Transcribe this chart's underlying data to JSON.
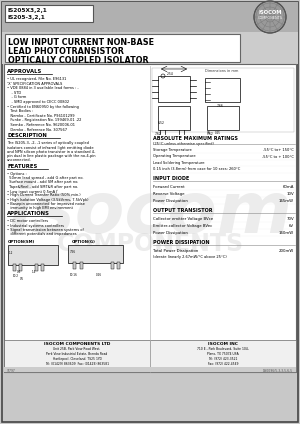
{
  "bg_color": "#c8c8c8",
  "white": "#ffffff",
  "black": "#000000",
  "part1": "IS205X3,2,1",
  "part2": "IS205-3,2,1",
  "title_line1": "LOW INPUT CURRENT NON-BASE",
  "title_line2": "LEAD PHOTOTRANSISTOR",
  "title_line3": "OPTICALLY COUPLED ISOLATOR",
  "approvals_text": [
    "• UL recognized, File No. E96131",
    "‘X’ SPECIFICATION APPROVALS",
    "• VDE 0884 in 3 available lead forms : -",
    "    - STD",
    "    - G form",
    "    - SMD approved to CECC 00802",
    "• Certified to EN60950 by the following",
    "   Test Bodies :",
    "   Nemko - Certificate No. P96101299",
    "   Funke - Registration No. 199469-01 .22",
    "   Semko - Reference No. 9620006-01",
    "   Demko - Reference No. 307567"
  ],
  "desc_text": [
    "The IS205-3, -2, -1 series of optically coupled",
    "isolators consist of infrared light emitting diode",
    "and NPN silicon photo transistor in a standard 4-",
    "pin dual in line plastic package with the no-4-pin",
    "unconnected."
  ],
  "features_text": [
    "• Options :",
    "  50mm lead spread - add G after part no.",
    "  Surface mount - add SM after part no.",
    "  Tape&Reel - add SMT&R after part no.",
    "• Low input current 0.5mA Iⁱ",
    "• High Current Transfer Ratio (50% min.)",
    "• High Isolation Voltage (3.5kVrms, 7.5kVpk)",
    "• Basepin unconnected for improved noise",
    "   immunity in high EMI environment"
  ],
  "apps_text": [
    "• DC motor controllers",
    "• Industrial systems controllers",
    "• Signal transmission between systems of",
    "   different potentials and impedances"
  ],
  "abs_items": [
    [
      "Storage Temperature",
      "-55°C to+ 150°C"
    ],
    [
      "Operating Temperature",
      "-55°C to + 100°C"
    ],
    [
      "Lead Soldering Temperature",
      ""
    ],
    [
      "0.15 inch (3.8mm) from case for 10 secs: 260°C",
      ""
    ]
  ],
  "input_items": [
    [
      "Forward Current",
      "60mA"
    ],
    [
      "Reverse Voltage",
      "10V"
    ],
    [
      "Power Dissipation",
      "165mW"
    ]
  ],
  "output_items": [
    [
      "Collector emitter Voltage BVce",
      "70V"
    ],
    [
      "Emitter-collector Voltage BVec",
      "6V"
    ],
    [
      "Power Dissipation",
      "160mW"
    ]
  ],
  "footer_left_title": "ISOCOM COMPONENTS LTD",
  "footer_left": [
    "Unit 25B, Park View Road West,",
    "Park View Industrial Estate, Brenda Road",
    "Hartlepool, Cleveland, TS25 1YD",
    "Tel: (01429) 863609  Fax: (01429) 863581"
  ],
  "footer_right_title": "ISOCOM INC",
  "footer_right": [
    "710 E., Park Boulevard, Suite 104,",
    "Plano, TX 75074 USA",
    "Tel: (972) 423-3521",
    "Fax: (972) 422-4549"
  ],
  "ref_left": "9/797",
  "ref_right": "DS0096/5-3,3,5,6,5"
}
